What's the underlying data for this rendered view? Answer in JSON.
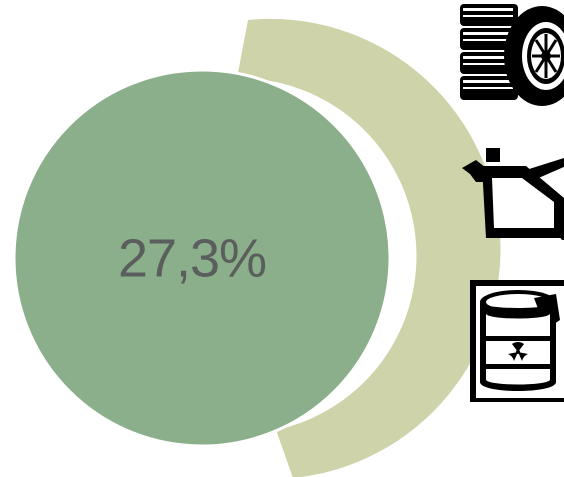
{
  "colors": {
    "main_circle": "#8bae8b",
    "outer_arc": "#cfd3aa",
    "icon": "#000000",
    "label_text": "#5a5e5c"
  },
  "chart_data": {
    "type": "pie",
    "slices": [
      {
        "label": "27,3%",
        "value": 27.3
      }
    ]
  },
  "icons": [
    {
      "name": "tires-icon"
    },
    {
      "name": "oil-can-icon"
    },
    {
      "name": "hazardous-barrel-icon"
    }
  ]
}
